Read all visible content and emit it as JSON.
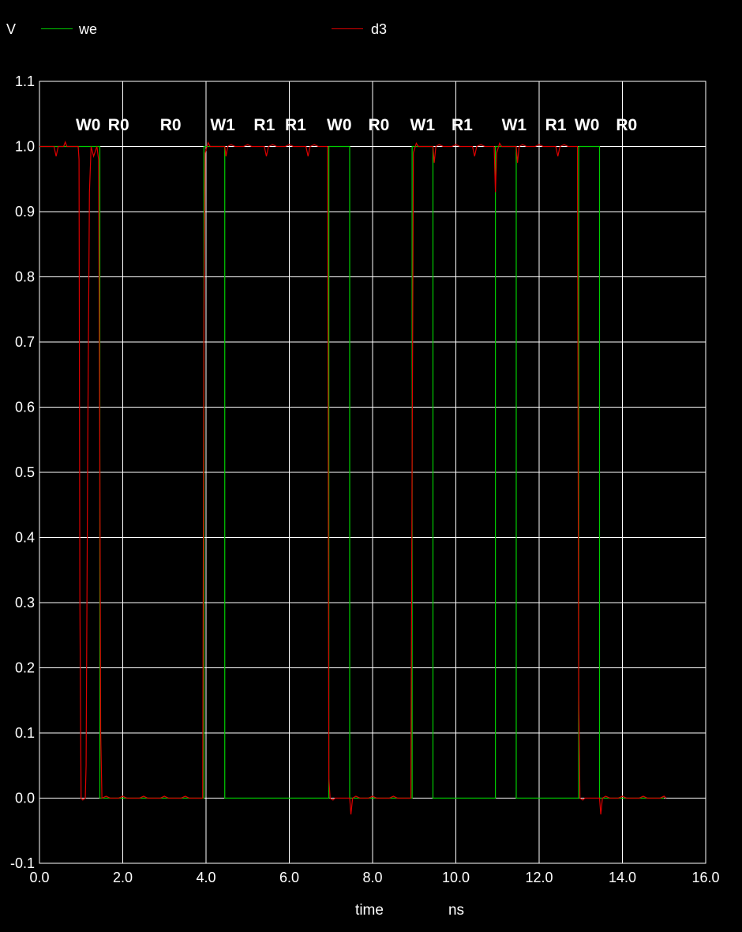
{
  "chart_data": {
    "type": "line",
    "ylabel": "V",
    "xlabel": "time",
    "xunit": "ns",
    "xlim": [
      0.0,
      16.0
    ],
    "ylim": [
      -0.1,
      1.1
    ],
    "grid": true,
    "legend_placement": "top",
    "x_ticks": [
      "0.0",
      "2.0",
      "4.0",
      "6.0",
      "8.0",
      "10.0",
      "12.0",
      "14.0",
      "16.0"
    ],
    "y_ticks": [
      "-0.1",
      "0.0",
      "0.1",
      "0.2",
      "0.3",
      "0.4",
      "0.5",
      "0.6",
      "0.7",
      "0.8",
      "0.9",
      "1.0",
      "1.1"
    ],
    "annotations": [
      {
        "text": "W0",
        "x": 1.17
      },
      {
        "text": "R0",
        "x": 1.9
      },
      {
        "text": "R0",
        "x": 3.15
      },
      {
        "text": "W1",
        "x": 4.4
      },
      {
        "text": "R1",
        "x": 5.4
      },
      {
        "text": "R1",
        "x": 6.15
      },
      {
        "text": "W0",
        "x": 7.2
      },
      {
        "text": "R0",
        "x": 8.15
      },
      {
        "text": "W1",
        "x": 9.2
      },
      {
        "text": "R1",
        "x": 10.15
      },
      {
        "text": "W1",
        "x": 11.4
      },
      {
        "text": "R1",
        "x": 12.4
      },
      {
        "text": "W0",
        "x": 13.15
      },
      {
        "text": "R0",
        "x": 14.1
      }
    ],
    "series": [
      {
        "name": "we",
        "color": "#00cc00",
        "points": [
          [
            0.0,
            1.0
          ],
          [
            1.45,
            1.0
          ],
          [
            1.45,
            0.0
          ],
          [
            3.95,
            0.0
          ],
          [
            3.95,
            1.0
          ],
          [
            4.45,
            1.0
          ],
          [
            4.45,
            0.0
          ],
          [
            6.95,
            0.0
          ],
          [
            6.95,
            1.0
          ],
          [
            7.45,
            1.0
          ],
          [
            7.45,
            0.0
          ],
          [
            8.95,
            0.0
          ],
          [
            8.95,
            1.0
          ],
          [
            9.45,
            1.0
          ],
          [
            9.45,
            0.0
          ],
          [
            10.95,
            0.0
          ],
          [
            10.95,
            1.0
          ],
          [
            11.45,
            1.0
          ],
          [
            11.45,
            0.0
          ],
          [
            12.95,
            0.0
          ],
          [
            12.95,
            1.0
          ],
          [
            13.45,
            1.0
          ],
          [
            13.45,
            0.0
          ],
          [
            15.0,
            0.0
          ]
        ]
      },
      {
        "name": "d3",
        "color": "#dd0000",
        "points": [
          [
            0.0,
            1.0
          ],
          [
            0.35,
            1.0
          ],
          [
            0.4,
            0.985
          ],
          [
            0.45,
            1.0
          ],
          [
            0.58,
            1.0
          ],
          [
            0.62,
            1.007
          ],
          [
            0.66,
            1.0
          ],
          [
            0.93,
            1.0
          ],
          [
            0.95,
            0.98
          ],
          [
            0.97,
            0.31
          ],
          [
            1.0,
            0.0
          ],
          [
            1.04,
            -0.003
          ],
          [
            1.1,
            0.0
          ],
          [
            1.12,
            0.05
          ],
          [
            1.16,
            0.55
          ],
          [
            1.2,
            0.93
          ],
          [
            1.24,
            1.0
          ],
          [
            1.3,
            0.985
          ],
          [
            1.38,
            1.0
          ],
          [
            1.42,
            0.98
          ],
          [
            1.45,
            0.52
          ],
          [
            1.47,
            0.1
          ],
          [
            1.5,
            0.0
          ],
          [
            1.6,
            0.003
          ],
          [
            1.7,
            0.0
          ],
          [
            1.9,
            0.0
          ],
          [
            2.0,
            0.003
          ],
          [
            2.1,
            0.0
          ],
          [
            2.4,
            0.0
          ],
          [
            2.5,
            0.003
          ],
          [
            2.6,
            0.0
          ],
          [
            2.9,
            0.0
          ],
          [
            3.0,
            0.003
          ],
          [
            3.1,
            0.0
          ],
          [
            3.4,
            0.0
          ],
          [
            3.5,
            0.003
          ],
          [
            3.6,
            0.0
          ],
          [
            3.92,
            0.0
          ],
          [
            3.95,
            0.74
          ],
          [
            3.98,
            0.99
          ],
          [
            4.05,
            1.006
          ],
          [
            4.1,
            1.0
          ],
          [
            4.2,
            1.0
          ],
          [
            4.45,
            1.0
          ],
          [
            4.48,
            0.985
          ],
          [
            4.52,
            1.0
          ],
          [
            4.6,
            1.003
          ],
          [
            4.7,
            1.0
          ],
          [
            4.9,
            1.0
          ],
          [
            5.0,
            1.003
          ],
          [
            5.1,
            1.0
          ],
          [
            5.4,
            1.0
          ],
          [
            5.45,
            0.985
          ],
          [
            5.5,
            1.0
          ],
          [
            5.6,
            1.003
          ],
          [
            5.7,
            1.0
          ],
          [
            5.9,
            1.0
          ],
          [
            6.0,
            1.003
          ],
          [
            6.1,
            1.0
          ],
          [
            6.4,
            1.0
          ],
          [
            6.45,
            0.985
          ],
          [
            6.5,
            1.0
          ],
          [
            6.6,
            1.003
          ],
          [
            6.7,
            1.0
          ],
          [
            6.92,
            1.0
          ],
          [
            6.95,
            0.03
          ],
          [
            6.98,
            0.0
          ],
          [
            7.05,
            -0.003
          ],
          [
            7.1,
            0.0
          ],
          [
            7.3,
            0.0
          ],
          [
            7.45,
            0.0
          ],
          [
            7.48,
            -0.025
          ],
          [
            7.52,
            0.0
          ],
          [
            7.6,
            0.003
          ],
          [
            7.7,
            0.0
          ],
          [
            7.9,
            0.0
          ],
          [
            8.0,
            0.003
          ],
          [
            8.1,
            0.0
          ],
          [
            8.4,
            0.0
          ],
          [
            8.5,
            0.003
          ],
          [
            8.6,
            0.0
          ],
          [
            8.92,
            0.0
          ],
          [
            8.95,
            0.52
          ],
          [
            8.98,
            0.99
          ],
          [
            9.05,
            1.005
          ],
          [
            9.1,
            1.0
          ],
          [
            9.3,
            1.0
          ],
          [
            9.45,
            1.0
          ],
          [
            9.48,
            0.975
          ],
          [
            9.52,
            1.0
          ],
          [
            9.6,
            1.003
          ],
          [
            9.7,
            1.0
          ],
          [
            9.9,
            1.0
          ],
          [
            10.0,
            1.003
          ],
          [
            10.1,
            1.0
          ],
          [
            10.4,
            1.0
          ],
          [
            10.45,
            0.985
          ],
          [
            10.5,
            1.0
          ],
          [
            10.6,
            1.003
          ],
          [
            10.7,
            1.0
          ],
          [
            10.92,
            1.0
          ],
          [
            10.95,
            0.93
          ],
          [
            10.98,
            0.99
          ],
          [
            11.05,
            1.005
          ],
          [
            11.1,
            1.0
          ],
          [
            11.3,
            1.0
          ],
          [
            11.45,
            1.0
          ],
          [
            11.48,
            0.975
          ],
          [
            11.52,
            1.0
          ],
          [
            11.6,
            1.003
          ],
          [
            11.7,
            1.0
          ],
          [
            11.9,
            1.0
          ],
          [
            12.0,
            1.003
          ],
          [
            12.1,
            1.0
          ],
          [
            12.4,
            1.0
          ],
          [
            12.45,
            0.985
          ],
          [
            12.5,
            1.0
          ],
          [
            12.6,
            1.003
          ],
          [
            12.7,
            1.0
          ],
          [
            12.92,
            1.0
          ],
          [
            12.95,
            0.16
          ],
          [
            12.98,
            0.0
          ],
          [
            13.05,
            -0.003
          ],
          [
            13.1,
            0.0
          ],
          [
            13.3,
            0.0
          ],
          [
            13.45,
            0.0
          ],
          [
            13.48,
            -0.025
          ],
          [
            13.52,
            0.0
          ],
          [
            13.6,
            0.003
          ],
          [
            13.7,
            0.0
          ],
          [
            13.9,
            0.0
          ],
          [
            14.0,
            0.003
          ],
          [
            14.1,
            0.0
          ],
          [
            14.4,
            0.0
          ],
          [
            14.5,
            0.003
          ],
          [
            14.6,
            0.0
          ],
          [
            14.9,
            0.0
          ],
          [
            15.0,
            0.003
          ],
          [
            15.05,
            0.0
          ]
        ]
      }
    ]
  }
}
